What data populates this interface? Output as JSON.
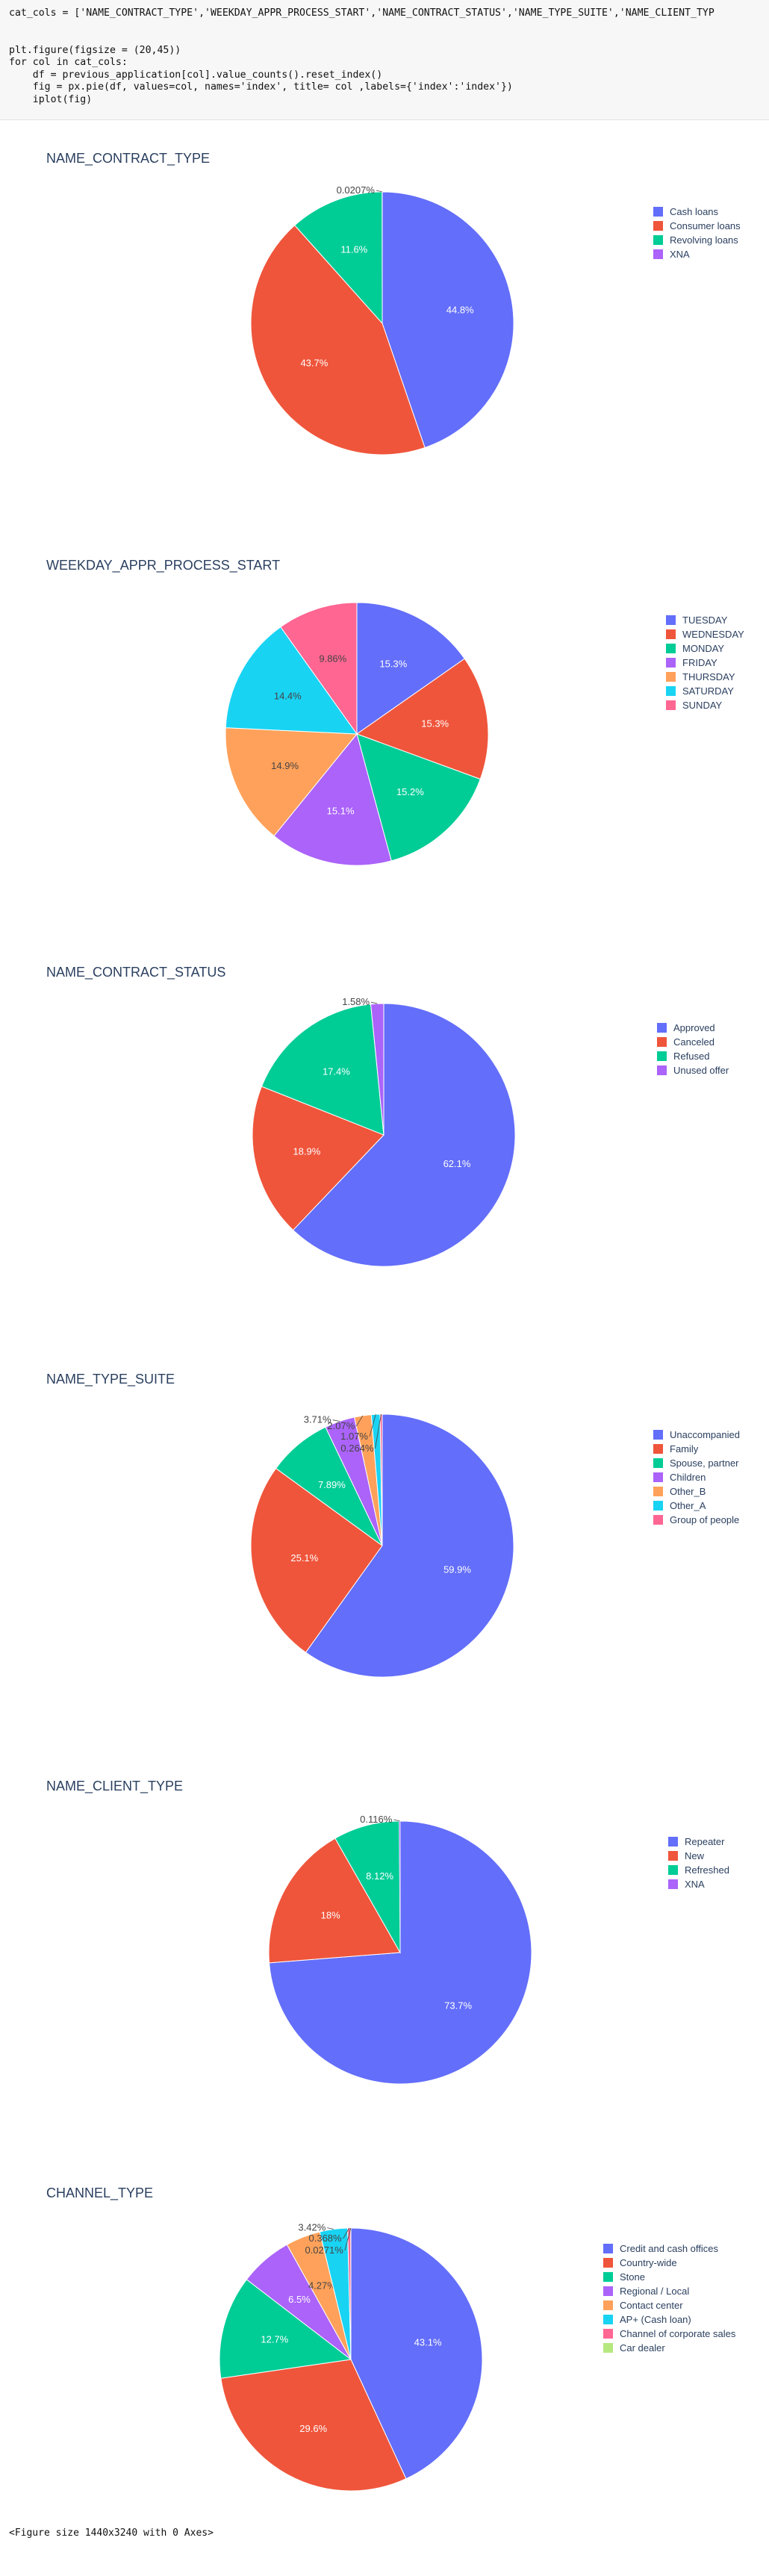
{
  "code_cell": {
    "lines": [
      "cat_cols = ['NAME_CONTRACT_TYPE','WEEKDAY_APPR_PROCESS_START','NAME_CONTRACT_STATUS','NAME_TYPE_SUITE','NAME_CLIENT_TYP",
      "",
      "",
      "plt.figure(figsize = (20,45))",
      "for col in cat_cols:",
      "    df = previous_application[col].value_counts().reset_index()",
      "    fig = px.pie(df, values=col, names='index', title= col ,labels={'index':'index'})",
      "    iplot(fig)"
    ]
  },
  "output_text": "<Figure size 1440x3240 with 0 Axes>",
  "colors": [
    "#636efa",
    "#ef553b",
    "#00cc96",
    "#ab63fa",
    "#ffa15a",
    "#19d3f3",
    "#ff6692",
    "#b6e880"
  ],
  "chart_data": [
    {
      "type": "pie",
      "title": "NAME_CONTRACT_TYPE",
      "labels": [
        "Cash loans",
        "Consumer loans",
        "Revolving loans",
        "XNA"
      ],
      "percent_labels": [
        "44.8%",
        "43.7%",
        "11.6%",
        "0.0207%"
      ],
      "values": [
        44.8,
        43.7,
        11.6,
        0.0207
      ],
      "legend": "right"
    },
    {
      "type": "pie",
      "title": "WEEKDAY_APPR_PROCESS_START",
      "labels": [
        "TUESDAY",
        "WEDNESDAY",
        "MONDAY",
        "FRIDAY",
        "THURSDAY",
        "SATURDAY",
        "SUNDAY"
      ],
      "percent_labels": [
        "15.3%",
        "15.3%",
        "15.2%",
        "15.1%",
        "14.9%",
        "14.4%",
        "9.86%"
      ],
      "values": [
        15.3,
        15.3,
        15.2,
        15.1,
        14.9,
        14.4,
        9.86
      ],
      "legend": "right"
    },
    {
      "type": "pie",
      "title": "NAME_CONTRACT_STATUS",
      "labels": [
        "Approved",
        "Canceled",
        "Refused",
        "Unused offer"
      ],
      "percent_labels": [
        "62.1%",
        "18.9%",
        "17.4%",
        "1.58%"
      ],
      "values": [
        62.1,
        18.9,
        17.4,
        1.58
      ],
      "legend": "right"
    },
    {
      "type": "pie",
      "title": "NAME_TYPE_SUITE",
      "labels": [
        "Unaccompanied",
        "Family",
        "Spouse, partner",
        "Children",
        "Other_B",
        "Other_A",
        "Group of people"
      ],
      "percent_labels": [
        "59.9%",
        "25.1%",
        "7.89%",
        "3.71%",
        "2.07%",
        "1.07%",
        "0.264%"
      ],
      "values": [
        59.9,
        25.1,
        7.89,
        3.71,
        2.07,
        1.07,
        0.264
      ],
      "legend": "right"
    },
    {
      "type": "pie",
      "title": "NAME_CLIENT_TYPE",
      "labels": [
        "Repeater",
        "New",
        "Refreshed",
        "XNA"
      ],
      "percent_labels": [
        "73.7%",
        "18%",
        "8.12%",
        "0.116%"
      ],
      "values": [
        73.7,
        18,
        8.12,
        0.116
      ],
      "legend": "right"
    },
    {
      "type": "pie",
      "title": "CHANNEL_TYPE",
      "labels": [
        "Credit and cash offices",
        "Country-wide",
        "Stone",
        "Regional / Local",
        "Contact center",
        "AP+ (Cash loan)",
        "Channel of corporate sales",
        "Car dealer"
      ],
      "percent_labels": [
        "43.1%",
        "29.6%",
        "12.7%",
        "6.5%",
        "4.27%",
        "3.42%",
        "0.368%",
        "0.0271%"
      ],
      "values": [
        43.1,
        29.6,
        12.7,
        6.5,
        4.27,
        3.42,
        0.368,
        0.0271
      ],
      "legend": "right"
    }
  ]
}
